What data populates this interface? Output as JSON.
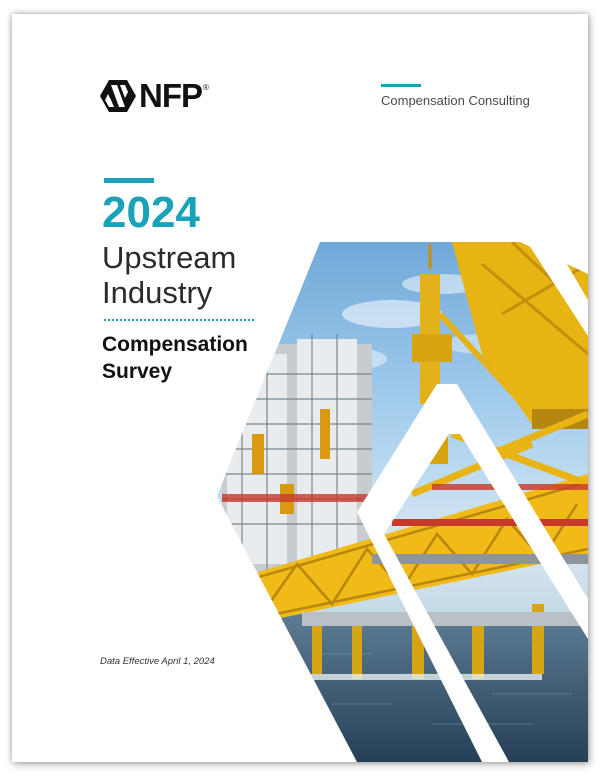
{
  "brand": {
    "logo_text": "NFP",
    "logo_mark": "®",
    "mark_icon": "nfp-diamond-logo-icon"
  },
  "header": {
    "division": "Compensation Consulting"
  },
  "title": {
    "year": "2024",
    "line1": "Upstream",
    "line2": "Industry",
    "survey_line1": "Compensation",
    "survey_line2": "Survey"
  },
  "footer": {
    "effective_date": "Data Effective April 1, 2024"
  },
  "colors": {
    "accent": "#1aa3b8",
    "text_dark": "#111111",
    "structure_yellow": "#e8b414",
    "sky": "#8fc2e6",
    "sea": "#2f4f68"
  },
  "illustration": {
    "subject": "offshore-oil-platform-photo"
  }
}
